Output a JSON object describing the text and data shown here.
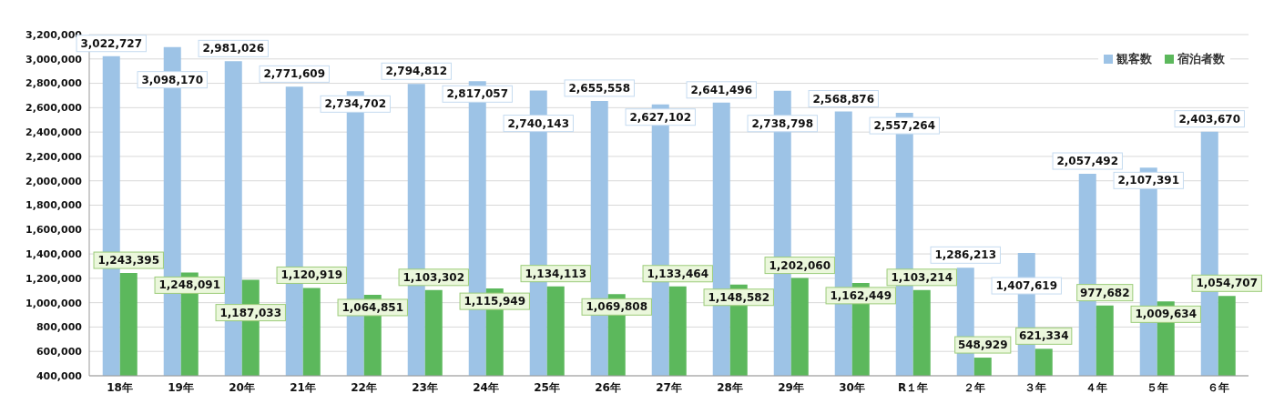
{
  "chart_data": {
    "type": "bar",
    "categories": [
      "18年",
      "19年",
      "20年",
      "21年",
      "22年",
      "23年",
      "24年",
      "25年",
      "26年",
      "27年",
      "28年",
      "29年",
      "30年",
      "R１年",
      "２年",
      "３年",
      "４年",
      "５年",
      "６年"
    ],
    "series": [
      {
        "name": "観客数",
        "color": "#9dc3e6",
        "values": [
          3022727,
          3098170,
          2981026,
          2771609,
          2734702,
          2794812,
          2817057,
          2740143,
          2655558,
          2627102,
          2641496,
          2738798,
          2568876,
          2557264,
          1286213,
          1407619,
          2057492,
          2107391,
          2403670
        ],
        "value_labels": [
          "3,022,727",
          "3,098,170",
          "2,981,026",
          "2,771,609",
          "2,734,702",
          "2,794,812",
          "2,817,057",
          "2,740,143",
          "2,655,558",
          "2,627,102",
          "2,641,496",
          "2,738,798",
          "2,568,876",
          "2,557,264",
          "1,286,213",
          "1,407,619",
          "2,057,492",
          "2,107,391",
          "2,403,670"
        ]
      },
      {
        "name": "宿泊者数",
        "color": "#5cb85c",
        "values": [
          1243395,
          1248091,
          1187033,
          1120919,
          1064851,
          1103302,
          1115949,
          1134113,
          1069808,
          1133464,
          1148582,
          1202060,
          1162449,
          1103214,
          548929,
          621334,
          977682,
          1009634,
          1054707
        ],
        "value_labels": [
          "1,243,395",
          "1,248,091",
          "1,187,033",
          "1,120,919",
          "1,064,851",
          "1,103,302",
          "1,115,949",
          "1,134,113",
          "1,069,808",
          "1,133,464",
          "1,148,582",
          "1,202,060",
          "1,162,449",
          "1,103,214",
          "548,929",
          "621,334",
          "977,682",
          "1,009,634",
          "1,054,707"
        ]
      }
    ],
    "ylim": [
      400000,
      3200000
    ],
    "yticks": [
      {
        "value": 400000,
        "label": "400,000"
      },
      {
        "value": 600000,
        "label": "600,000"
      },
      {
        "value": 800000,
        "label": "800,000"
      },
      {
        "value": 1000000,
        "label": "1,000,000"
      },
      {
        "value": 1200000,
        "label": "1,200,000"
      },
      {
        "value": 1400000,
        "label": "1,400,000"
      },
      {
        "value": 1600000,
        "label": "1,600,000"
      },
      {
        "value": 1800000,
        "label": "1,800,000"
      },
      {
        "value": 2000000,
        "label": "2,000,000"
      },
      {
        "value": 2200000,
        "label": "2,200,000"
      },
      {
        "value": 2400000,
        "label": "2,400,000"
      },
      {
        "value": 2600000,
        "label": "2,600,000"
      },
      {
        "value": 2800000,
        "label": "2,800,000"
      },
      {
        "value": 3000000,
        "label": "3,000,000"
      },
      {
        "value": 3200000,
        "label": "3,200,000"
      }
    ],
    "grid": "y",
    "legend": "top right"
  }
}
